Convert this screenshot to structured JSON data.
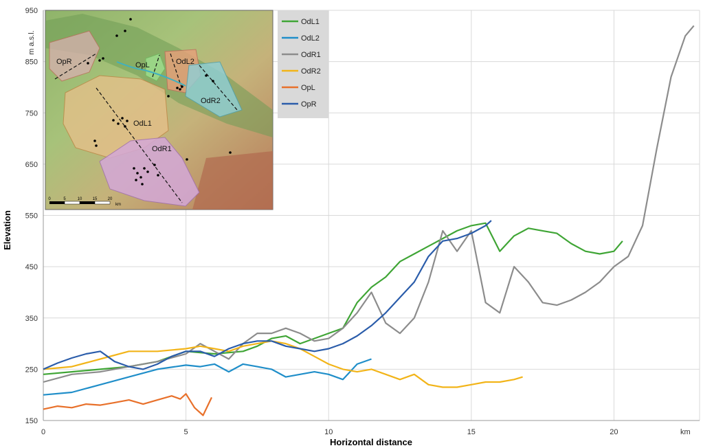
{
  "chart_data": {
    "type": "line",
    "title": "",
    "xlabel": "Horizontal distance",
    "ylabel": "Elevation",
    "x_unit": "km",
    "y_unit": "m a.s.l.",
    "xlim": [
      0,
      23
    ],
    "ylim": [
      150,
      950
    ],
    "x_ticks": [
      0,
      5,
      10,
      15,
      20
    ],
    "y_ticks": [
      150,
      250,
      350,
      450,
      550,
      650,
      750,
      850,
      950
    ],
    "x_tick_labels": [
      "0",
      "5",
      "10",
      "15",
      "20"
    ],
    "y_tick_labels": [
      "150",
      "250",
      "350",
      "450",
      "550",
      "650",
      "750",
      "850",
      "950"
    ],
    "grid": true,
    "legend_position": "top, right of inset map",
    "series": [
      {
        "name": "OdL1",
        "color": "#3fa535",
        "x": [
          0,
          1,
          2,
          3,
          4,
          5,
          6,
          7,
          7.5,
          8,
          8.5,
          9,
          9.5,
          10,
          10.5,
          11,
          11.5,
          12,
          12.5,
          13,
          13.5,
          14,
          14.5,
          15,
          15.5,
          16,
          16.5,
          17,
          17.5,
          18,
          18.5,
          19,
          19.5,
          20,
          20.3
        ],
        "y": [
          240,
          245,
          250,
          255,
          265,
          285,
          280,
          285,
          295,
          310,
          315,
          300,
          310,
          320,
          330,
          380,
          410,
          430,
          460,
          475,
          490,
          505,
          520,
          530,
          535,
          480,
          510,
          525,
          520,
          515,
          495,
          480,
          475,
          480,
          500
        ]
      },
      {
        "name": "OdL2",
        "color": "#1f8ec9",
        "x": [
          0,
          1,
          2,
          3,
          4,
          5,
          5.5,
          6,
          6.5,
          7,
          7.5,
          8,
          8.5,
          9,
          9.5,
          10,
          10.5,
          11,
          11.5
        ],
        "y": [
          200,
          205,
          220,
          235,
          250,
          258,
          255,
          260,
          245,
          260,
          255,
          250,
          235,
          240,
          245,
          240,
          230,
          260,
          270
        ]
      },
      {
        "name": "OdR1",
        "color": "#8c8c8c",
        "x": [
          0,
          1,
          2,
          3,
          4,
          5,
          5.5,
          6,
          6.5,
          7,
          7.5,
          8,
          8.5,
          9,
          9.5,
          10,
          10.5,
          11,
          11.5,
          12,
          12.5,
          13,
          13.5,
          14,
          14.5,
          15,
          15.5,
          16,
          16.5,
          17,
          17.5,
          18,
          18.5,
          19,
          19.5,
          20,
          20.5,
          21,
          21.5,
          22,
          22.5,
          22.8
        ],
        "y": [
          225,
          240,
          245,
          255,
          265,
          280,
          300,
          285,
          270,
          300,
          320,
          320,
          330,
          320,
          305,
          310,
          330,
          360,
          400,
          340,
          320,
          350,
          420,
          520,
          480,
          520,
          380,
          360,
          450,
          420,
          380,
          375,
          385,
          400,
          420,
          450,
          470,
          530,
          680,
          820,
          900,
          920
        ]
      },
      {
        "name": "OdR2",
        "color": "#f2b418",
        "x": [
          0,
          1,
          2,
          3,
          4,
          5,
          5.5,
          6,
          6.5,
          7,
          7.5,
          8,
          8.5,
          9,
          9.5,
          10,
          10.5,
          11,
          11.5,
          12,
          12.5,
          13,
          13.5,
          14,
          14.5,
          15,
          15.5,
          16,
          16.5,
          16.8
        ],
        "y": [
          250,
          255,
          270,
          285,
          285,
          290,
          295,
          290,
          285,
          295,
          300,
          305,
          300,
          290,
          275,
          260,
          250,
          245,
          250,
          240,
          230,
          240,
          220,
          215,
          215,
          220,
          225,
          225,
          230,
          235
        ]
      },
      {
        "name": "OpL",
        "color": "#e8702a",
        "x": [
          0,
          0.5,
          1,
          1.5,
          2,
          2.5,
          3,
          3.5,
          4,
          4.5,
          4.8,
          5,
          5.3,
          5.6,
          5.9
        ],
        "y": [
          172,
          178,
          175,
          182,
          180,
          185,
          190,
          182,
          190,
          198,
          192,
          202,
          175,
          160,
          195
        ]
      },
      {
        "name": "OpR",
        "color": "#2a5caa",
        "x": [
          0,
          0.5,
          1,
          1.5,
          2,
          2.5,
          3,
          3.5,
          4,
          4.5,
          5,
          5.5,
          6,
          6.5,
          7,
          7.5,
          8,
          8.5,
          9,
          9.5,
          10,
          10.5,
          11,
          11.5,
          12,
          12.5,
          13,
          13.5,
          14,
          14.5,
          15,
          15.5,
          15.7
        ],
        "y": [
          250,
          262,
          272,
          280,
          285,
          265,
          255,
          250,
          260,
          275,
          285,
          285,
          275,
          290,
          300,
          305,
          305,
          295,
          290,
          285,
          290,
          300,
          315,
          335,
          360,
          390,
          420,
          470,
          500,
          505,
          515,
          530,
          540
        ]
      }
    ]
  },
  "inset_map": {
    "areas": [
      "OpR",
      "OpL",
      "OdL2",
      "OdR2",
      "OdL1",
      "OdR1"
    ],
    "scale_ticks": [
      "0",
      "5",
      "10",
      "15",
      "20"
    ],
    "scale_unit": "km"
  }
}
